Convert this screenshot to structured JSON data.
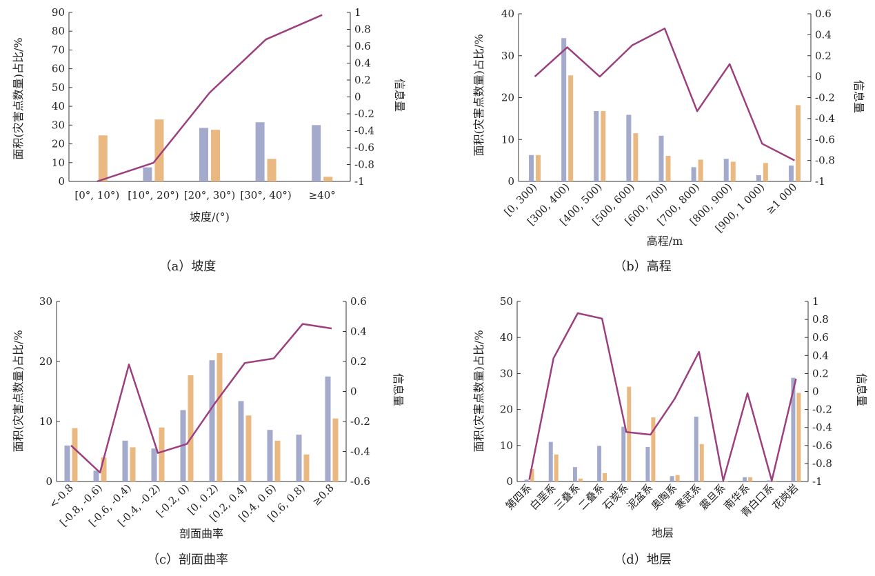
{
  "colors": {
    "bar_area": "#a4aacb",
    "bar_points": "#e9b981",
    "line": "#9c3f7e"
  },
  "chart_data": [
    {
      "type": "bar",
      "caption": "（a）坡度",
      "xlabel": "坡度/(°)",
      "ylabel": "面积(灾害点数量)占比/%",
      "y2label": "信息量",
      "categories": [
        "[0°, 10°)",
        "[10°, 20°)",
        "[20°, 30°)",
        "[30°, 40°)",
        "≥40°"
      ],
      "series": [
        {
          "type": "bar",
          "values": [
            0,
            7.5,
            28.5,
            31.5,
            30
          ]
        },
        {
          "type": "bar",
          "values": [
            24.5,
            33,
            27.5,
            12,
            2.5
          ]
        },
        {
          "type": "line",
          "axis": "right",
          "values": [
            -1.0,
            -0.78,
            0.05,
            0.68,
            0.97
          ]
        }
      ],
      "ylim": [
        0,
        90
      ],
      "yticks": [
        0,
        10,
        20,
        30,
        40,
        50,
        60,
        70,
        80,
        90
      ],
      "y2lim": [
        -1,
        1
      ],
      "y2ticks": [
        "-1",
        "-0.8",
        "-0.6",
        "-0.4",
        "-0.2",
        "0",
        "0.2",
        "0.4",
        "0.6",
        "0.8",
        "1"
      ]
    },
    {
      "type": "bar",
      "caption": "（b）高程",
      "xlabel": "高程/m",
      "ylabel": "面积(灾害点数量)占比/%",
      "y2label": "信息量",
      "categories": [
        "[0, 300)",
        "[300, 400)",
        "[400, 500)",
        "[500, 600)",
        "[600, 700)",
        "[700, 800)",
        "[800, 900)",
        "[900, 1 000)",
        "≥1 000"
      ],
      "series": [
        {
          "type": "bar",
          "values": [
            6.3,
            34.2,
            16.8,
            15.9,
            10.9,
            3.4,
            5.4,
            1.5,
            3.8
          ]
        },
        {
          "type": "bar",
          "values": [
            6.3,
            25.3,
            16.8,
            11.5,
            6.1,
            5.2,
            4.7,
            4.4,
            18.2
          ]
        },
        {
          "type": "line",
          "axis": "right",
          "values": [
            0.0,
            0.28,
            0.0,
            0.3,
            0.46,
            -0.33,
            0.12,
            -0.64,
            -0.8
          ]
        }
      ],
      "ylim": [
        0,
        40
      ],
      "yticks": [
        0,
        10,
        20,
        30,
        40
      ],
      "y2lim": [
        -1,
        0.6
      ],
      "y2ticks": [
        "-1",
        "-0.8",
        "-0.6",
        "-0.4",
        "-0.2",
        "0",
        "0.2",
        "0.4",
        "0.6"
      ]
    },
    {
      "type": "bar",
      "caption": "（c）剖面曲率",
      "xlabel": "剖面曲率",
      "ylabel": "面积(灾害点数量)占比/%",
      "y2label": "信息量",
      "categories": [
        "<-0.8",
        "[-0.8, -0.6)",
        "[-0.6, -0.4)",
        "[-0.4, -0.2)",
        "[-0.2, 0)",
        "[0, 0.2)",
        "[0.2, 0.4)",
        "[0.4, 0.6)",
        "[0.6, 0.8)",
        "≥0.8"
      ],
      "series": [
        {
          "type": "bar",
          "values": [
            6.0,
            1.8,
            6.8,
            5.5,
            11.9,
            20.2,
            13.4,
            8.6,
            7.8,
            17.5
          ]
        },
        {
          "type": "bar",
          "values": [
            8.9,
            4.0,
            5.7,
            9.0,
            17.7,
            21.4,
            11.0,
            6.8,
            4.5,
            10.5
          ]
        },
        {
          "type": "line",
          "axis": "right",
          "values": [
            -0.36,
            -0.54,
            0.18,
            -0.41,
            -0.35,
            -0.07,
            0.19,
            0.22,
            0.45,
            0.42
          ]
        }
      ],
      "ylim": [
        0,
        30
      ],
      "yticks": [
        0,
        10,
        20,
        30
      ],
      "y2lim": [
        -0.6,
        0.6
      ],
      "y2ticks": [
        "-0.6",
        "-0.4",
        "-0.2",
        "0",
        "0.2",
        "0.4",
        "0.6"
      ]
    },
    {
      "type": "bar",
      "caption": "（d）地层",
      "xlabel": "地层",
      "ylabel": "面积(灾害点数量)占比/%",
      "y2label": "信息量",
      "categories": [
        "第四系",
        "白垩系",
        "三叠系",
        "二叠系",
        "石炭系",
        "泥盆系",
        "奥陶系",
        "寒武系",
        "震旦系",
        "南华系",
        "青白口系",
        "花岗岩"
      ],
      "series": [
        {
          "type": "bar",
          "values": [
            0.5,
            11.0,
            4.0,
            9.9,
            15.2,
            9.6,
            1.5,
            18.0,
            0.2,
            1.2,
            0.3,
            28.8
          ]
        },
        {
          "type": "bar",
          "values": [
            3.5,
            7.5,
            0.8,
            2.3,
            26.3,
            17.8,
            1.8,
            10.4,
            0.1,
            1.2,
            0.2,
            24.6
          ]
        },
        {
          "type": "line",
          "axis": "right",
          "values": [
            -0.98,
            0.37,
            0.87,
            0.81,
            -0.45,
            -0.48,
            -0.08,
            0.44,
            -0.99,
            -0.02,
            -0.99,
            0.14
          ]
        }
      ],
      "ylim": [
        0,
        50
      ],
      "yticks": [
        0,
        10,
        20,
        30,
        40,
        50
      ],
      "y2lim": [
        -1,
        1
      ],
      "y2ticks": [
        "-1",
        "-0.8",
        "-0.6",
        "-0.4",
        "-0.2",
        "0",
        "0.2",
        "0.4",
        "0.6",
        "0.8",
        "1"
      ]
    }
  ]
}
